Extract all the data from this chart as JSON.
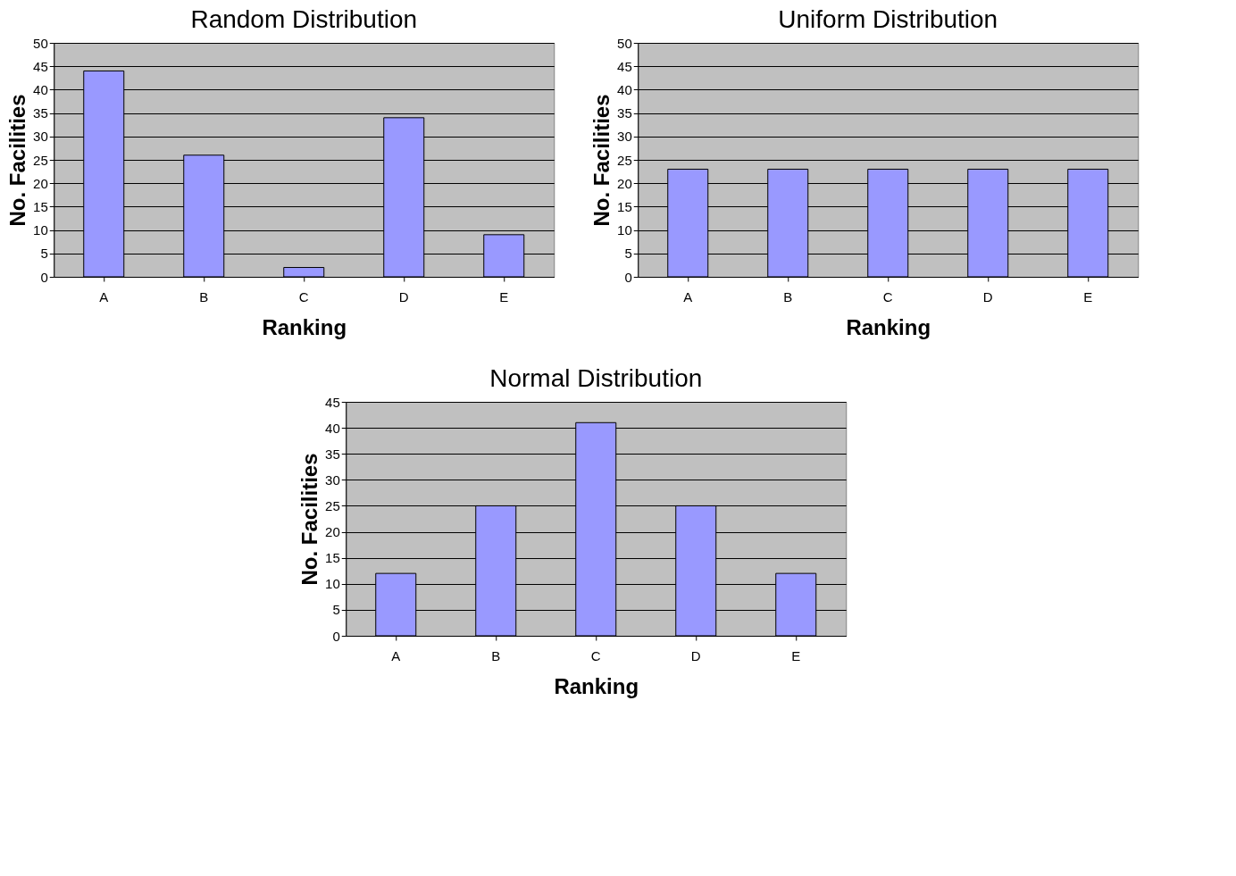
{
  "chart_data": [
    {
      "type": "bar",
      "title": "Random Distribution",
      "xlabel": "Ranking",
      "ylabel": "No. Facilities",
      "categories": [
        "A",
        "B",
        "C",
        "D",
        "E"
      ],
      "values": [
        44,
        26,
        2,
        34,
        9
      ],
      "color": "#9999ff",
      "ylim": [
        0,
        50
      ],
      "yticks": [
        0,
        5,
        10,
        15,
        20,
        25,
        30,
        35,
        40,
        45,
        50
      ],
      "grid": "y"
    },
    {
      "type": "bar",
      "title": "Uniform Distribution",
      "xlabel": "Ranking",
      "ylabel": "No. Facilities",
      "categories": [
        "A",
        "B",
        "C",
        "D",
        "E"
      ],
      "values": [
        23,
        23,
        23,
        23,
        23
      ],
      "color": "#9999ff",
      "ylim": [
        0,
        50
      ],
      "yticks": [
        0,
        5,
        10,
        15,
        20,
        25,
        30,
        35,
        40,
        45,
        50
      ],
      "grid": "y"
    },
    {
      "type": "bar",
      "title": "Normal Distribution",
      "xlabel": "Ranking",
      "ylabel": "No. Facilities",
      "categories": [
        "A",
        "B",
        "C",
        "D",
        "E"
      ],
      "values": [
        12,
        25,
        41,
        25,
        12
      ],
      "color": "#9999ff",
      "ylim": [
        0,
        45
      ],
      "yticks": [
        0,
        5,
        10,
        15,
        20,
        25,
        30,
        35,
        40,
        45
      ],
      "grid": "y"
    }
  ]
}
